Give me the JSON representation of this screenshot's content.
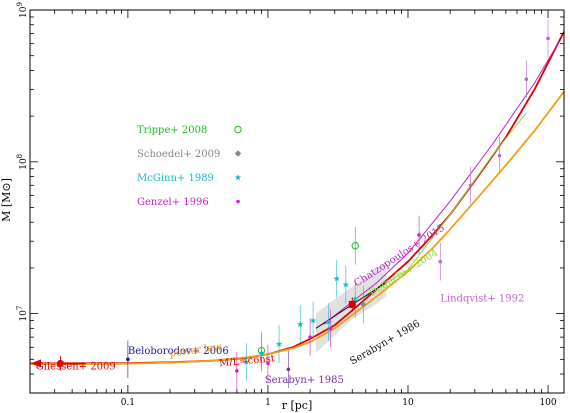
{
  "chart_data": {
    "type": "line",
    "title": "",
    "xlabel": "r [pc]",
    "ylabel": "M [M⊙]",
    "xscale": "log",
    "yscale": "log",
    "xlim": [
      0.02,
      130
    ],
    "ylim": [
      3000000,
      1000000000
    ],
    "grid": false,
    "x_ticks": [
      {
        "value": 0.1,
        "label": "0.1"
      },
      {
        "value": 1,
        "label": "1"
      },
      {
        "value": 10,
        "label": "10"
      },
      {
        "value": 100,
        "label": "100"
      }
    ],
    "y_ticks": [
      {
        "value": 10000000,
        "label": "10⁷",
        "base": "10",
        "exp": "7"
      },
      {
        "value": 100000000,
        "label": "10⁸",
        "base": "10",
        "exp": "8"
      },
      {
        "value": 1000000000,
        "label": "10⁹",
        "base": "10",
        "exp": "9"
      }
    ],
    "legend": {
      "placement": "upper-left",
      "entries": [
        {
          "label": "Trippe+ 2008",
          "color": "#22bb22",
          "marker": "open-circle"
        },
        {
          "label": "Schoedel+ 2009",
          "color": "#888888",
          "marker": "diamond"
        },
        {
          "label": "McGinn+ 1989",
          "color": "#18b8c8",
          "marker": "star"
        },
        {
          "label": "Genzel+ 1996",
          "color": "#cc22cc",
          "marker": "dot"
        }
      ]
    },
    "series": [
      {
        "label": "M/L=const",
        "color": "#dd0000",
        "style": "solid",
        "points": [
          [
            0.02,
            4700000
          ],
          [
            0.05,
            4700000
          ],
          [
            0.1,
            4720000
          ],
          [
            0.2,
            4780000
          ],
          [
            0.4,
            4900000
          ],
          [
            0.7,
            5100000
          ],
          [
            1,
            5400000
          ],
          [
            1.5,
            6000000
          ],
          [
            2,
            6800000
          ],
          [
            3,
            8400000
          ],
          [
            4,
            10500000
          ],
          [
            6,
            14500000
          ],
          [
            10,
            22000000
          ],
          [
            15,
            33000000
          ],
          [
            20,
            45000000
          ],
          [
            30,
            75000000
          ],
          [
            50,
            145000000
          ],
          [
            80,
            300000000
          ],
          [
            130,
            720000000
          ]
        ]
      },
      {
        "label": "power law",
        "color": "#f0a010",
        "style": "solid",
        "points": [
          [
            0.02,
            4650000
          ],
          [
            0.05,
            4660000
          ],
          [
            0.1,
            4680000
          ],
          [
            0.2,
            4760000
          ],
          [
            0.4,
            4900000
          ],
          [
            0.7,
            5150000
          ],
          [
            1,
            5400000
          ],
          [
            1.5,
            5900000
          ],
          [
            2,
            6500000
          ],
          [
            3,
            8000000
          ],
          [
            4,
            9800000
          ],
          [
            6,
            13000000
          ],
          [
            10,
            19000000
          ],
          [
            15,
            27000000
          ],
          [
            20,
            36000000
          ],
          [
            30,
            55000000
          ],
          [
            50,
            95000000
          ],
          [
            80,
            160000000
          ],
          [
            130,
            290000000
          ]
        ]
      },
      {
        "label": "Chatzopoulos+ 2015",
        "color": "#bb22cc",
        "style": "solid",
        "points": [
          [
            2.5,
            8500000
          ],
          [
            4,
            12000000
          ],
          [
            6,
            16000000
          ],
          [
            10,
            25000000
          ],
          [
            20,
            55000000
          ],
          [
            40,
            130000000
          ],
          [
            80,
            330000000
          ],
          [
            120,
            620000000
          ]
        ]
      },
      {
        "label": "Deguchi+ 2004",
        "color": "#88dd44",
        "style": "solid",
        "points": [
          [
            5,
            13000000
          ],
          [
            10,
            19500000
          ],
          [
            20,
            45000000
          ],
          [
            40,
            110000000
          ],
          [
            70,
            210000000
          ]
        ]
      },
      {
        "label": "Serabyn+ 1986",
        "color": "#111111",
        "style": "solid",
        "points": [
          [
            2.2,
            8000000
          ],
          [
            4,
            11500000
          ],
          [
            7,
            16000000
          ]
        ]
      },
      {
        "label": "Gilessen+ 2009",
        "color": "#dd0000",
        "style": "solid",
        "points": [
          [
            0.033,
            4700000
          ],
          [
            0.05,
            4700000
          ]
        ]
      },
      {
        "label": "Beloborodov+ 2006",
        "color": "#1a1a99",
        "style": "points",
        "points": [
          [
            0.1,
            5000000
          ]
        ]
      },
      {
        "label": "Serabyn+ 1985",
        "color": "#7733aa",
        "style": "points",
        "points": [
          [
            1.4,
            4300000
          ]
        ]
      },
      {
        "label": "Lindqvist+ 1992",
        "color": "#bb66cc",
        "style": "points",
        "points": [
          [
            17,
            22000000
          ],
          [
            28,
            70000000
          ],
          [
            45,
            110000000
          ],
          [
            70,
            350000000
          ],
          [
            100,
            650000000
          ]
        ]
      },
      {
        "label": "Trippe+ 2008",
        "color": "#22bb22",
        "style": "points",
        "points": [
          [
            0.9,
            5700000
          ],
          [
            4.2,
            28000000
          ]
        ]
      },
      {
        "label": "McGinn+ 1989",
        "color": "#18b8c8",
        "style": "points",
        "points": [
          [
            0.7,
            4800000
          ],
          [
            0.9,
            5500000
          ],
          [
            1.2,
            6300000
          ],
          [
            1.7,
            8500000
          ],
          [
            2.1,
            9000000
          ],
          [
            2.7,
            8800000
          ],
          [
            3.1,
            17000000
          ],
          [
            3.6,
            15500000
          ],
          [
            4.2,
            12500000
          ]
        ]
      },
      {
        "label": "Genzel+ 1996",
        "color": "#cc22cc",
        "style": "points",
        "points": [
          [
            0.6,
            4200000
          ],
          [
            1,
            4700000
          ],
          [
            2,
            7000000
          ],
          [
            2.8,
            8000000
          ],
          [
            12,
            33000000
          ]
        ]
      },
      {
        "label": "Schoedel+ 2009",
        "color": "#888888",
        "style": "points",
        "points": [
          [
            4.8,
            11500000
          ]
        ]
      }
    ],
    "highlight_points": [
      {
        "label": "Gilessen+ 2009",
        "x": 0.033,
        "y": 4700000,
        "color": "#dd0000"
      },
      {
        "label": "Schoedel+ 2009",
        "x": 4,
        "y": 11500000,
        "color": "#dd0000"
      }
    ],
    "annotations": [
      {
        "text": "Beloborodov+ 2006",
        "color": "#1a1a99",
        "x": 0.1,
        "y": 5400000,
        "rotate": 0
      },
      {
        "text": "power law",
        "color": "#f0a010",
        "x": 0.2,
        "y": 5200000,
        "rotate": -8
      },
      {
        "text": "Gilessen+ 2009",
        "color": "#dd0000",
        "x": 0.022,
        "y": 4300000,
        "rotate": 0
      },
      {
        "text": "M/L=const",
        "color": "#dd0000",
        "x": 0.45,
        "y": 4500000,
        "rotate": -5
      },
      {
        "text": "Serabyn+ 1985",
        "color": "#7733aa",
        "x": 0.95,
        "y": 3500000,
        "rotate": 0
      },
      {
        "text": "Serabyn+ 1986",
        "color": "#111111",
        "x": 4,
        "y": 4600000,
        "rotate": -30
      },
      {
        "text": "Chatzopoulos+ 2015",
        "color": "#bb22cc",
        "x": 4.3,
        "y": 15000000,
        "rotate": -33
      },
      {
        "text": "Deguchi+ 2004",
        "color": "#88dd44",
        "x": 5.5,
        "y": 13000000,
        "rotate": -32
      },
      {
        "text": "Lindqvist+ 1992",
        "color": "#bb66cc",
        "x": 17,
        "y": 12000000,
        "rotate": 0
      }
    ]
  }
}
